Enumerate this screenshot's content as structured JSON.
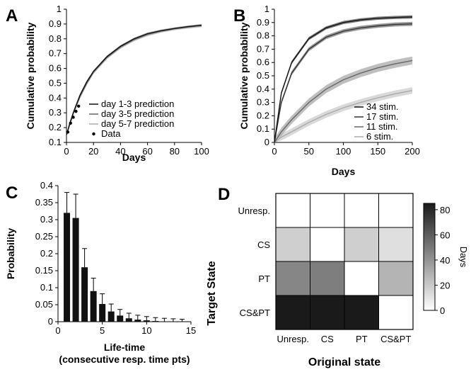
{
  "chart_data": [
    {
      "panel": "A",
      "type": "line",
      "xlabel": "Days",
      "ylabel": "Cumulative probability",
      "xlim": [
        0,
        100
      ],
      "ylim": [
        0.1,
        1.0
      ],
      "xticks": [
        "0",
        "20",
        "40",
        "60",
        "80",
        "100"
      ],
      "yticks": [
        "0.1",
        "0.2",
        "0.3",
        "0.4",
        "0.5",
        "0.6",
        "0.7",
        "0.8",
        "0.9",
        "1"
      ],
      "legend_position": "bottom-right",
      "series": [
        {
          "name": "day 1-3 prediction",
          "color": "#111111",
          "band": "#888888",
          "x": [
            0,
            2,
            5,
            10,
            15,
            20,
            30,
            40,
            50,
            60,
            70,
            80,
            90,
            100
          ],
          "y": [
            0.15,
            0.215,
            0.3,
            0.42,
            0.51,
            0.58,
            0.68,
            0.75,
            0.8,
            0.835,
            0.855,
            0.87,
            0.882,
            0.892
          ]
        },
        {
          "name": "day 3-5 prediction",
          "color": "#666666",
          "band": "#aaaaaa",
          "x": [
            0,
            2,
            5,
            10,
            15,
            20,
            30,
            40,
            50,
            60,
            70,
            80,
            90,
            100
          ],
          "y": [
            0.15,
            0.21,
            0.295,
            0.41,
            0.5,
            0.575,
            0.675,
            0.745,
            0.795,
            0.83,
            0.852,
            0.868,
            0.88,
            0.89
          ]
        },
        {
          "name": "day 5-7 prediction",
          "color": "#aaaaaa",
          "band": "#cccccc",
          "x": [
            0,
            2,
            5,
            10,
            15,
            20,
            30,
            40,
            50,
            60,
            70,
            80,
            90,
            100
          ],
          "y": [
            0.15,
            0.205,
            0.29,
            0.405,
            0.495,
            0.57,
            0.67,
            0.74,
            0.79,
            0.825,
            0.848,
            0.865,
            0.876,
            0.885
          ]
        }
      ],
      "data_points": {
        "name": "Data",
        "x": [
          1,
          3,
          5,
          7,
          9
        ],
        "y": [
          0.17,
          0.23,
          0.27,
          0.31,
          0.345
        ]
      }
    },
    {
      "panel": "B",
      "type": "line",
      "xlabel": "Days",
      "ylabel": "Cumulative probability",
      "xlim": [
        0,
        200
      ],
      "ylim": [
        0,
        1.0
      ],
      "xticks": [
        "0",
        "50",
        "100",
        "150",
        "200"
      ],
      "yticks": [
        "0",
        "0.1",
        "0.2",
        "0.3",
        "0.4",
        "0.5",
        "0.6",
        "0.7",
        "0.8",
        "0.9",
        "1"
      ],
      "legend_position": "bottom-right",
      "series": [
        {
          "name": "34 stim.",
          "color": "#111111",
          "band": "#555555",
          "x": [
            0,
            10,
            25,
            50,
            75,
            100,
            125,
            150,
            175,
            200
          ],
          "y": [
            0.0,
            0.37,
            0.6,
            0.78,
            0.86,
            0.9,
            0.92,
            0.932,
            0.938,
            0.942
          ]
        },
        {
          "name": "17 stim.",
          "color": "#333333",
          "band": "#777777",
          "x": [
            0,
            10,
            25,
            50,
            75,
            100,
            125,
            150,
            175,
            200
          ],
          "y": [
            0.0,
            0.3,
            0.52,
            0.7,
            0.79,
            0.835,
            0.86,
            0.875,
            0.885,
            0.89
          ]
        },
        {
          "name": "11 stim.",
          "color": "#666666",
          "band": "#aaaaaa",
          "x": [
            0,
            10,
            25,
            50,
            75,
            100,
            125,
            150,
            175,
            200
          ],
          "y": [
            0.0,
            0.08,
            0.17,
            0.3,
            0.4,
            0.47,
            0.52,
            0.56,
            0.59,
            0.615
          ]
        },
        {
          "name": "6 stim.",
          "color": "#aaaaaa",
          "band": "#cccccc",
          "x": [
            0,
            10,
            25,
            50,
            75,
            100,
            125,
            150,
            175,
            200
          ],
          "y": [
            0.0,
            0.04,
            0.08,
            0.15,
            0.21,
            0.26,
            0.3,
            0.335,
            0.365,
            0.39
          ]
        }
      ]
    },
    {
      "panel": "C",
      "type": "bar",
      "xlabel": "Life-time",
      "xlabel2": "(consecutive resp. time pts)",
      "ylabel": "Probability",
      "xlim": [
        0,
        15
      ],
      "ylim": [
        0,
        0.4
      ],
      "xticks": [
        "0",
        "5",
        "10",
        "15"
      ],
      "yticks": [
        "0",
        "0.05",
        "0.1",
        "0.15",
        "0.2",
        "0.25",
        "0.3",
        "0.35",
        "0.4"
      ],
      "categories": [
        1,
        2,
        3,
        4,
        5,
        6,
        7,
        8,
        9,
        10,
        11,
        12,
        13,
        14
      ],
      "values": [
        0.32,
        0.305,
        0.16,
        0.09,
        0.052,
        0.03,
        0.018,
        0.01,
        0.006,
        0.004,
        0.002,
        0.001,
        0.0005,
        0.0003
      ],
      "errors": [
        0.06,
        0.07,
        0.055,
        0.038,
        0.03,
        0.022,
        0.018,
        0.015,
        0.013,
        0.011,
        0.01,
        0.009,
        0.008,
        0.007
      ]
    },
    {
      "panel": "D",
      "type": "heatmap",
      "xlabel": "Original state",
      "ylabel": "Target State",
      "x_categories": [
        "Unresp.",
        "CS",
        "PT",
        "CS&PT"
      ],
      "y_categories": [
        "Unresp.",
        "CS",
        "PT",
        "CS&PT"
      ],
      "values": [
        [
          0,
          0,
          0,
          0
        ],
        [
          18,
          0,
          18,
          12
        ],
        [
          45,
          48,
          0,
          28
        ],
        [
          85,
          85,
          85,
          0
        ]
      ],
      "colorbar": {
        "label": "Days",
        "min": 0,
        "max": 85,
        "ticks": [
          "0",
          "20",
          "40",
          "60",
          "80"
        ]
      }
    }
  ]
}
